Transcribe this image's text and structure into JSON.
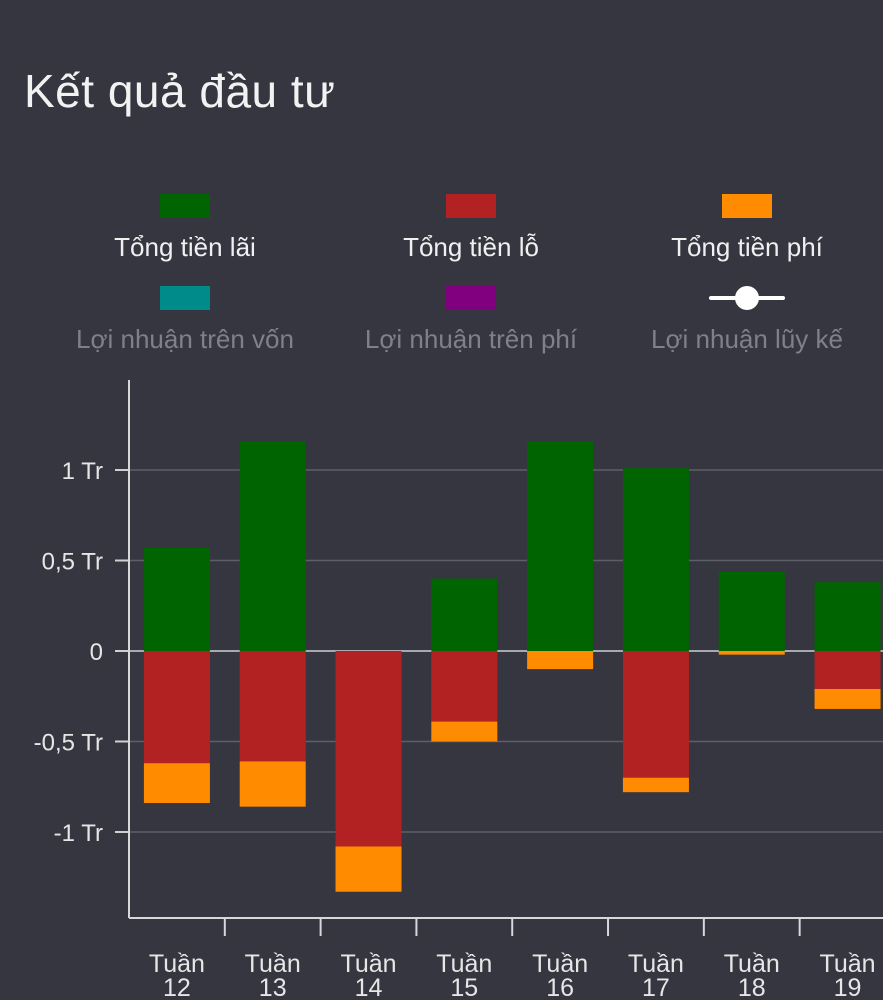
{
  "title": "Kết quả đầu tư",
  "legend": [
    {
      "label": "Tổng tiền lãi",
      "color": "#006400",
      "kind": "box",
      "active": true
    },
    {
      "label": "Tổng tiền lỗ",
      "color": "#B22222",
      "kind": "box",
      "active": true
    },
    {
      "label": "Tổng tiền phí",
      "color": "#FF8C00",
      "kind": "box",
      "active": true
    },
    {
      "label": "Lợi nhuận trên vốn",
      "color": "#008B8B",
      "kind": "box",
      "active": false
    },
    {
      "label": "Lợi nhuận trên phí",
      "color": "#800080",
      "kind": "box",
      "active": false
    },
    {
      "label": "Lợi nhuận lũy kế",
      "color": "#FFFFFF",
      "kind": "line",
      "active": false
    }
  ],
  "chart_data": {
    "type": "bar",
    "stacked": true,
    "categories": [
      [
        "Tuần",
        "12"
      ],
      [
        "Tuần",
        "13"
      ],
      [
        "Tuần",
        "14"
      ],
      [
        "Tuần",
        "15"
      ],
      [
        "Tuần",
        "16"
      ],
      [
        "Tuần",
        "17"
      ],
      [
        "Tuần",
        "18"
      ],
      [
        "Tuần",
        "19"
      ]
    ],
    "series": [
      {
        "name": "Tổng tiền lãi",
        "color": "#006400",
        "values": [
          0.57,
          1.16,
          0,
          0.4,
          1.16,
          1.01,
          0.44,
          0.38
        ]
      },
      {
        "name": "Tổng tiền lỗ",
        "color": "#B22222",
        "values": [
          -0.62,
          -0.61,
          -1.08,
          -0.39,
          0,
          -0.7,
          0,
          -0.21
        ]
      },
      {
        "name": "Tổng tiền phí",
        "color": "#FF8C00",
        "values": [
          -0.22,
          -0.25,
          -0.25,
          -0.11,
          -0.1,
          -0.08,
          -0.02,
          -0.11
        ]
      }
    ],
    "yticks": [
      {
        "value": 1,
        "label": "1 Tr"
      },
      {
        "value": 0.5,
        "label": "0,5 Tr"
      },
      {
        "value": 0,
        "label": "0"
      },
      {
        "value": -0.5,
        "label": "-0,5 Tr"
      },
      {
        "value": -1,
        "label": "-1 Tr"
      }
    ],
    "ylim": [
      -1.48,
      1.5
    ],
    "grid": true
  }
}
